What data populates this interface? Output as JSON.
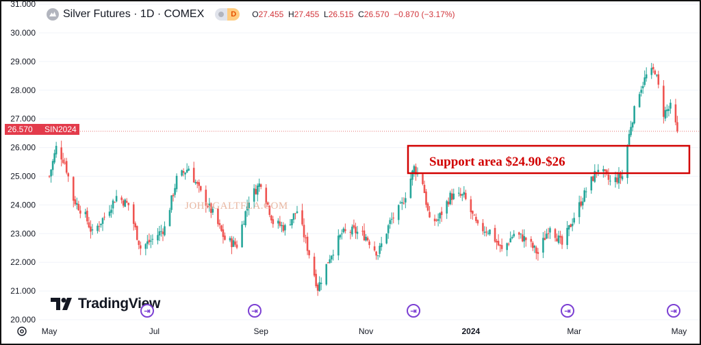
{
  "header": {
    "symbol_title": "Silver Futures · 1D · COMEX",
    "badge_letter": "D",
    "ohlc": {
      "o_label": "O",
      "o": "27.455",
      "h_label": "H",
      "h": "27.455",
      "l_label": "L",
      "l": "26.515",
      "c_label": "C",
      "c": "26.570",
      "change": "−0.870 (−3.17%)"
    }
  },
  "price_tag": {
    "price": "26.570",
    "contract": "SIN2024"
  },
  "annotation": {
    "support_text": "Support area $24.90-$26",
    "watermark": "JOHNGALTFLA.COM"
  },
  "brand": {
    "name": "TradingView"
  },
  "colors": {
    "up": "#26a69a",
    "down": "#ef5350",
    "annotation": "#d10000",
    "tag": "#e33b4b"
  },
  "icons": {
    "goto": "go-to-realtime-icon",
    "settings": "gear-icon",
    "logo": "tradingview-logo-icon"
  },
  "chart_data": {
    "type": "candlestick",
    "title": "Silver Futures · 1D · COMEX",
    "ylim": [
      20,
      31
    ],
    "y_ticks": [
      "20.000",
      "21.000",
      "22.000",
      "23.000",
      "24.000",
      "25.000",
      "26.000",
      "27.000",
      "28.000",
      "29.000",
      "30.000",
      "31.000"
    ],
    "x_ticks": [
      "May",
      "Jul",
      "Sep",
      "Nov",
      "2024",
      "Mar",
      "May"
    ],
    "last_price": 26.57,
    "support_zone": [
      24.9,
      26.0
    ],
    "grid": "horizontal",
    "close_approx": [
      {
        "date": "2023-05-01",
        "close": 25.0
      },
      {
        "date": "2023-05-05",
        "close": 26.0
      },
      {
        "date": "2023-05-10",
        "close": 25.5
      },
      {
        "date": "2023-05-15",
        "close": 24.2
      },
      {
        "date": "2023-05-22",
        "close": 23.6
      },
      {
        "date": "2023-05-26",
        "close": 23.0
      },
      {
        "date": "2023-06-02",
        "close": 23.6
      },
      {
        "date": "2023-06-09",
        "close": 24.3
      },
      {
        "date": "2023-06-16",
        "close": 24.0
      },
      {
        "date": "2023-06-23",
        "close": 22.5
      },
      {
        "date": "2023-06-30",
        "close": 22.8
      },
      {
        "date": "2023-07-07",
        "close": 23.2
      },
      {
        "date": "2023-07-14",
        "close": 24.9
      },
      {
        "date": "2023-07-21",
        "close": 25.3
      },
      {
        "date": "2023-07-28",
        "close": 24.4
      },
      {
        "date": "2023-08-04",
        "close": 23.7
      },
      {
        "date": "2023-08-11",
        "close": 22.8
      },
      {
        "date": "2023-08-18",
        "close": 22.6
      },
      {
        "date": "2023-08-25",
        "close": 24.2
      },
      {
        "date": "2023-09-01",
        "close": 24.8
      },
      {
        "date": "2023-09-08",
        "close": 23.4
      },
      {
        "date": "2023-09-15",
        "close": 23.2
      },
      {
        "date": "2023-09-22",
        "close": 23.8
      },
      {
        "date": "2023-09-29",
        "close": 22.3
      },
      {
        "date": "2023-10-04",
        "close": 21.1
      },
      {
        "date": "2023-10-11",
        "close": 22.2
      },
      {
        "date": "2023-10-18",
        "close": 23.0
      },
      {
        "date": "2023-10-25",
        "close": 23.1
      },
      {
        "date": "2023-11-01",
        "close": 22.9
      },
      {
        "date": "2023-11-08",
        "close": 22.3
      },
      {
        "date": "2023-11-15",
        "close": 23.4
      },
      {
        "date": "2023-11-22",
        "close": 24.0
      },
      {
        "date": "2023-11-29",
        "close": 25.3
      },
      {
        "date": "2023-12-04",
        "close": 24.8
      },
      {
        "date": "2023-12-08",
        "close": 23.4
      },
      {
        "date": "2023-12-13",
        "close": 23.5
      },
      {
        "date": "2023-12-20",
        "close": 24.3
      },
      {
        "date": "2023-12-28",
        "close": 24.3
      },
      {
        "date": "2024-01-05",
        "close": 23.2
      },
      {
        "date": "2024-01-12",
        "close": 23.1
      },
      {
        "date": "2024-01-19",
        "close": 22.4
      },
      {
        "date": "2024-01-26",
        "close": 23.0
      },
      {
        "date": "2024-02-02",
        "close": 22.8
      },
      {
        "date": "2024-02-09",
        "close": 22.3
      },
      {
        "date": "2024-02-16",
        "close": 23.3
      },
      {
        "date": "2024-02-23",
        "close": 22.6
      },
      {
        "date": "2024-03-01",
        "close": 23.6
      },
      {
        "date": "2024-03-08",
        "close": 24.5
      },
      {
        "date": "2024-03-15",
        "close": 25.3
      },
      {
        "date": "2024-03-22",
        "close": 24.8
      },
      {
        "date": "2024-03-29",
        "close": 25.0
      },
      {
        "date": "2024-04-03",
        "close": 26.8
      },
      {
        "date": "2024-04-08",
        "close": 28.0
      },
      {
        "date": "2024-04-12",
        "close": 28.5
      },
      {
        "date": "2024-04-17",
        "close": 28.7
      },
      {
        "date": "2024-04-22",
        "close": 27.2
      },
      {
        "date": "2024-04-26",
        "close": 27.4
      },
      {
        "date": "2024-04-30",
        "close": 26.57
      }
    ]
  }
}
